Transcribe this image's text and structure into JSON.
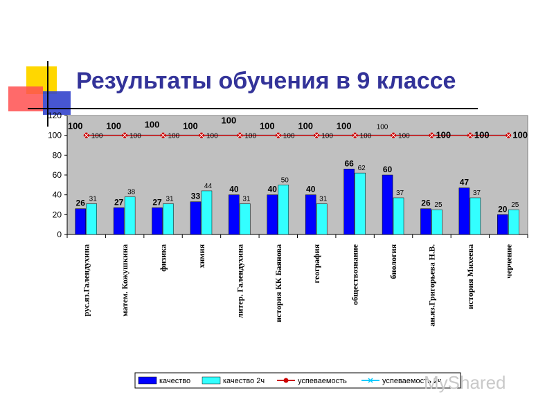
{
  "slide": {
    "title": "Результаты обучения в 9 классе",
    "watermark": "MyShared"
  },
  "colors": {
    "title": "#333399",
    "plot_bg": "#c0c0c0",
    "quality": "#0000ff",
    "quality2": "#33ffff",
    "success": "#cc0000",
    "success2": "#00ccff",
    "deco_yellow": "#ffd700",
    "deco_red": "#ff3333",
    "deco_blue": "#3333cc"
  },
  "chart_data": {
    "type": "bar",
    "categories": [
      "рус.яз.Галендухина",
      "матем. Кожушкина",
      "физика",
      "химия",
      "литер. Галендухина",
      "история КК Баянова",
      "география",
      "обществознание",
      "биология",
      "ан.яз.Григорьева Н.В.",
      "история Михеева",
      "черчение"
    ],
    "series": [
      {
        "name": "качество",
        "kind": "bar",
        "values": [
          26,
          27,
          27,
          33,
          40,
          40,
          40,
          66,
          60,
          26,
          47,
          20
        ]
      },
      {
        "name": "качество 2ч",
        "kind": "bar",
        "values": [
          31,
          38,
          31,
          44,
          31,
          50,
          31,
          62,
          37,
          25,
          37,
          25
        ]
      },
      {
        "name": "успеваемость",
        "kind": "line",
        "values": [
          100,
          100,
          100,
          100,
          100,
          100,
          100,
          100,
          100,
          100,
          100,
          100
        ]
      },
      {
        "name": "успеваемость 2ч",
        "kind": "line",
        "values": [
          100,
          100,
          100,
          100,
          100,
          100,
          100,
          100,
          100,
          100,
          100,
          100
        ]
      }
    ],
    "y_ticks": [
      0,
      20,
      40,
      60,
      80,
      100,
      120
    ],
    "ylim": [
      0,
      120
    ],
    "grid": false,
    "legend": "bottom"
  }
}
